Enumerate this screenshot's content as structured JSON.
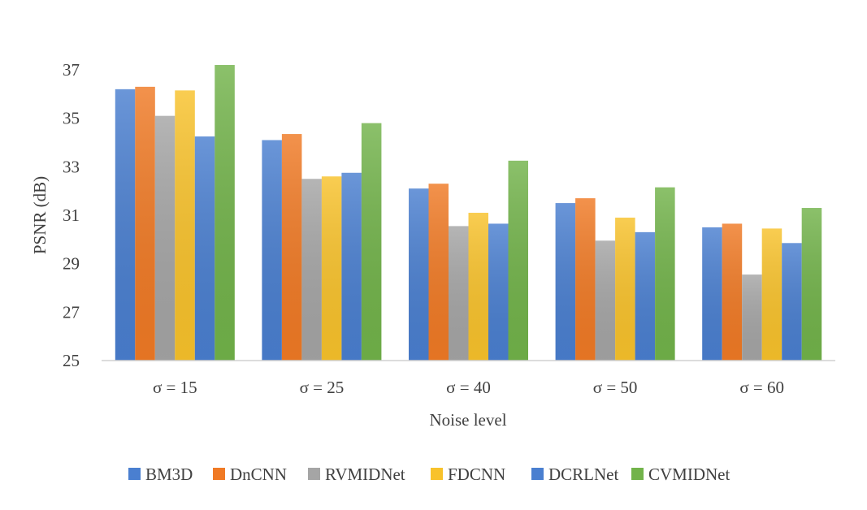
{
  "chart_data": {
    "type": "bar",
    "title": "",
    "xlabel": "Noise level",
    "ylabel": "PSNR (dB)",
    "ylim": [
      25,
      37
    ],
    "yticks": [
      25,
      27,
      29,
      31,
      33,
      35,
      37
    ],
    "grid": false,
    "legend_position": "bottom",
    "categories": [
      "σ = 15",
      "σ = 25",
      "σ = 40",
      "σ = 50",
      "σ = 60"
    ],
    "series": [
      {
        "name": "BM3D",
        "color": "#4A7FD0",
        "values": [
          36.2,
          34.1,
          32.1,
          31.5,
          30.5
        ]
      },
      {
        "name": "DnCNN",
        "color": "#F07A25",
        "values": [
          36.3,
          34.35,
          32.3,
          31.7,
          30.65
        ]
      },
      {
        "name": "RVMIDNet",
        "color": "#A5A5A5",
        "values": [
          35.1,
          32.5,
          30.55,
          29.95,
          28.55
        ]
      },
      {
        "name": "FDCNN",
        "color": "#F8C22B",
        "values": [
          36.15,
          32.6,
          31.1,
          30.9,
          30.45
        ]
      },
      {
        "name": "DCRLNet",
        "color": "#4A7FD0",
        "values": [
          34.25,
          32.75,
          30.65,
          30.3,
          29.85
        ]
      },
      {
        "name": "CVMIDNet",
        "color": "#72B34A",
        "values": [
          37.2,
          34.8,
          33.25,
          32.15,
          31.3
        ]
      }
    ]
  }
}
